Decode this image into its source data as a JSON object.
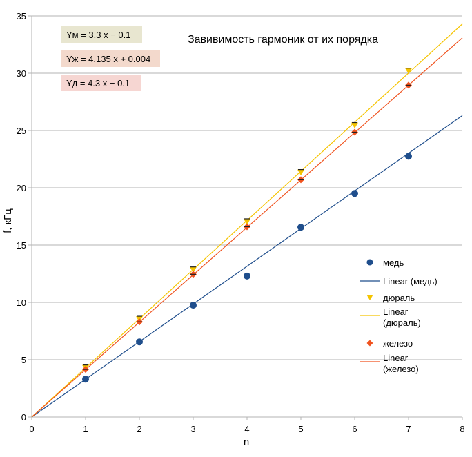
{
  "chart_data": {
    "type": "scatter",
    "title": "Завивимость гармоник от их порядка",
    "xlabel": "n",
    "ylabel": "f, кГц",
    "xlim": [
      0,
      8
    ],
    "ylim": [
      0,
      35
    ],
    "x_ticks": [
      "0",
      "1",
      "2",
      "3",
      "4",
      "5",
      "6",
      "7",
      "8"
    ],
    "y_ticks": [
      "0",
      "5",
      "10",
      "15",
      "20",
      "25",
      "30",
      "35"
    ],
    "grid": "horizontal",
    "legend_position": "right",
    "equations": [
      {
        "text": "Yм = 3.3 x − 0.1",
        "background": "#e8e6d0"
      },
      {
        "text": "Yж = 4.135 x + 0.004",
        "background": "#f3d9cc"
      },
      {
        "text": "Yд = 4.3 x − 0.1",
        "background": "#f6d6d2"
      }
    ],
    "series": [
      {
        "name": "медь",
        "marker": "circle",
        "color": "#1f4e8c",
        "x": [
          1,
          2,
          3,
          4,
          5,
          6,
          7
        ],
        "y": [
          3.3,
          6.55,
          9.75,
          12.3,
          16.55,
          19.5,
          22.75
        ],
        "trend_name": "Linear (медь)",
        "trend_slope": 3.3,
        "trend_intercept": -0.1
      },
      {
        "name": "дюраль",
        "marker": "triangle-down",
        "color": "#f5c400",
        "x": [
          1,
          2,
          3,
          4,
          5,
          6,
          7
        ],
        "y": [
          4.3,
          8.55,
          12.85,
          17.05,
          21.35,
          25.45,
          30.2
        ],
        "trend_name": "Linear (дюраль)",
        "trend_slope": 4.3,
        "trend_intercept": -0.1
      },
      {
        "name": "железо",
        "marker": "diamond",
        "color": "#f0521e",
        "x": [
          1,
          2,
          3,
          4,
          5,
          6,
          7
        ],
        "y": [
          4.15,
          8.3,
          12.45,
          16.6,
          20.7,
          24.85,
          28.95
        ],
        "trend_name": "Linear (железо)",
        "trend_slope": 4.135,
        "trend_intercept": 0.004
      }
    ],
    "legend": [
      {
        "label": "медь",
        "kind": "marker",
        "series": 0
      },
      {
        "label": "Linear (медь)",
        "kind": "line",
        "series": 0
      },
      {
        "label": "дюраль",
        "kind": "marker",
        "series": 1
      },
      {
        "label": "Linear (дюраль)",
        "kind": "line",
        "series": 1
      },
      {
        "label": "железо",
        "kind": "marker",
        "series": 2
      },
      {
        "label": "Linear (железо)",
        "kind": "line",
        "series": 2
      }
    ]
  }
}
